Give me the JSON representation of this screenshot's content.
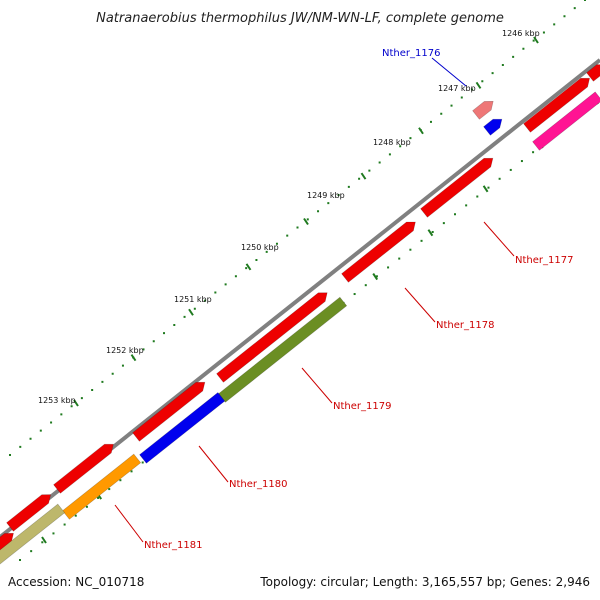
{
  "title": "Natranaerobius thermophilus JW/NM-WN-LF, complete genome",
  "footer": {
    "accession": "Accession: NC_010718",
    "summary": "Topology: circular; Length: 3,165,557 bp; Genes: 2,946"
  },
  "scale_labels": [
    "1246 kbp",
    "1247 kbp",
    "1248 kbp",
    "1249 kbp",
    "1250 kbp",
    "1251 kbp",
    "1252 kbp",
    "1253 kbp"
  ],
  "genes": [
    {
      "name": "Nther_1176",
      "color": "#0000cc"
    },
    {
      "name": "Nther_1177",
      "color": "#cc0000"
    },
    {
      "name": "Nther_1178",
      "color": "#cc0000"
    },
    {
      "name": "Nther_1179",
      "color": "#cc0000"
    },
    {
      "name": "Nther_1180",
      "color": "#cc0000"
    },
    {
      "name": "Nther_1181",
      "color": "#cc0000"
    }
  ],
  "colors": {
    "backbone": "#808080",
    "cds_red": "#ee0000",
    "cds_pink": "#ee7777",
    "cds_blue": "#0000ee",
    "cds_olive": "#6b8e23",
    "cds_orange": "#ff9900",
    "cds_khaki": "#bdb76b",
    "cds_magenta": "#ff1493",
    "tick_green": "#1f7a1f"
  }
}
